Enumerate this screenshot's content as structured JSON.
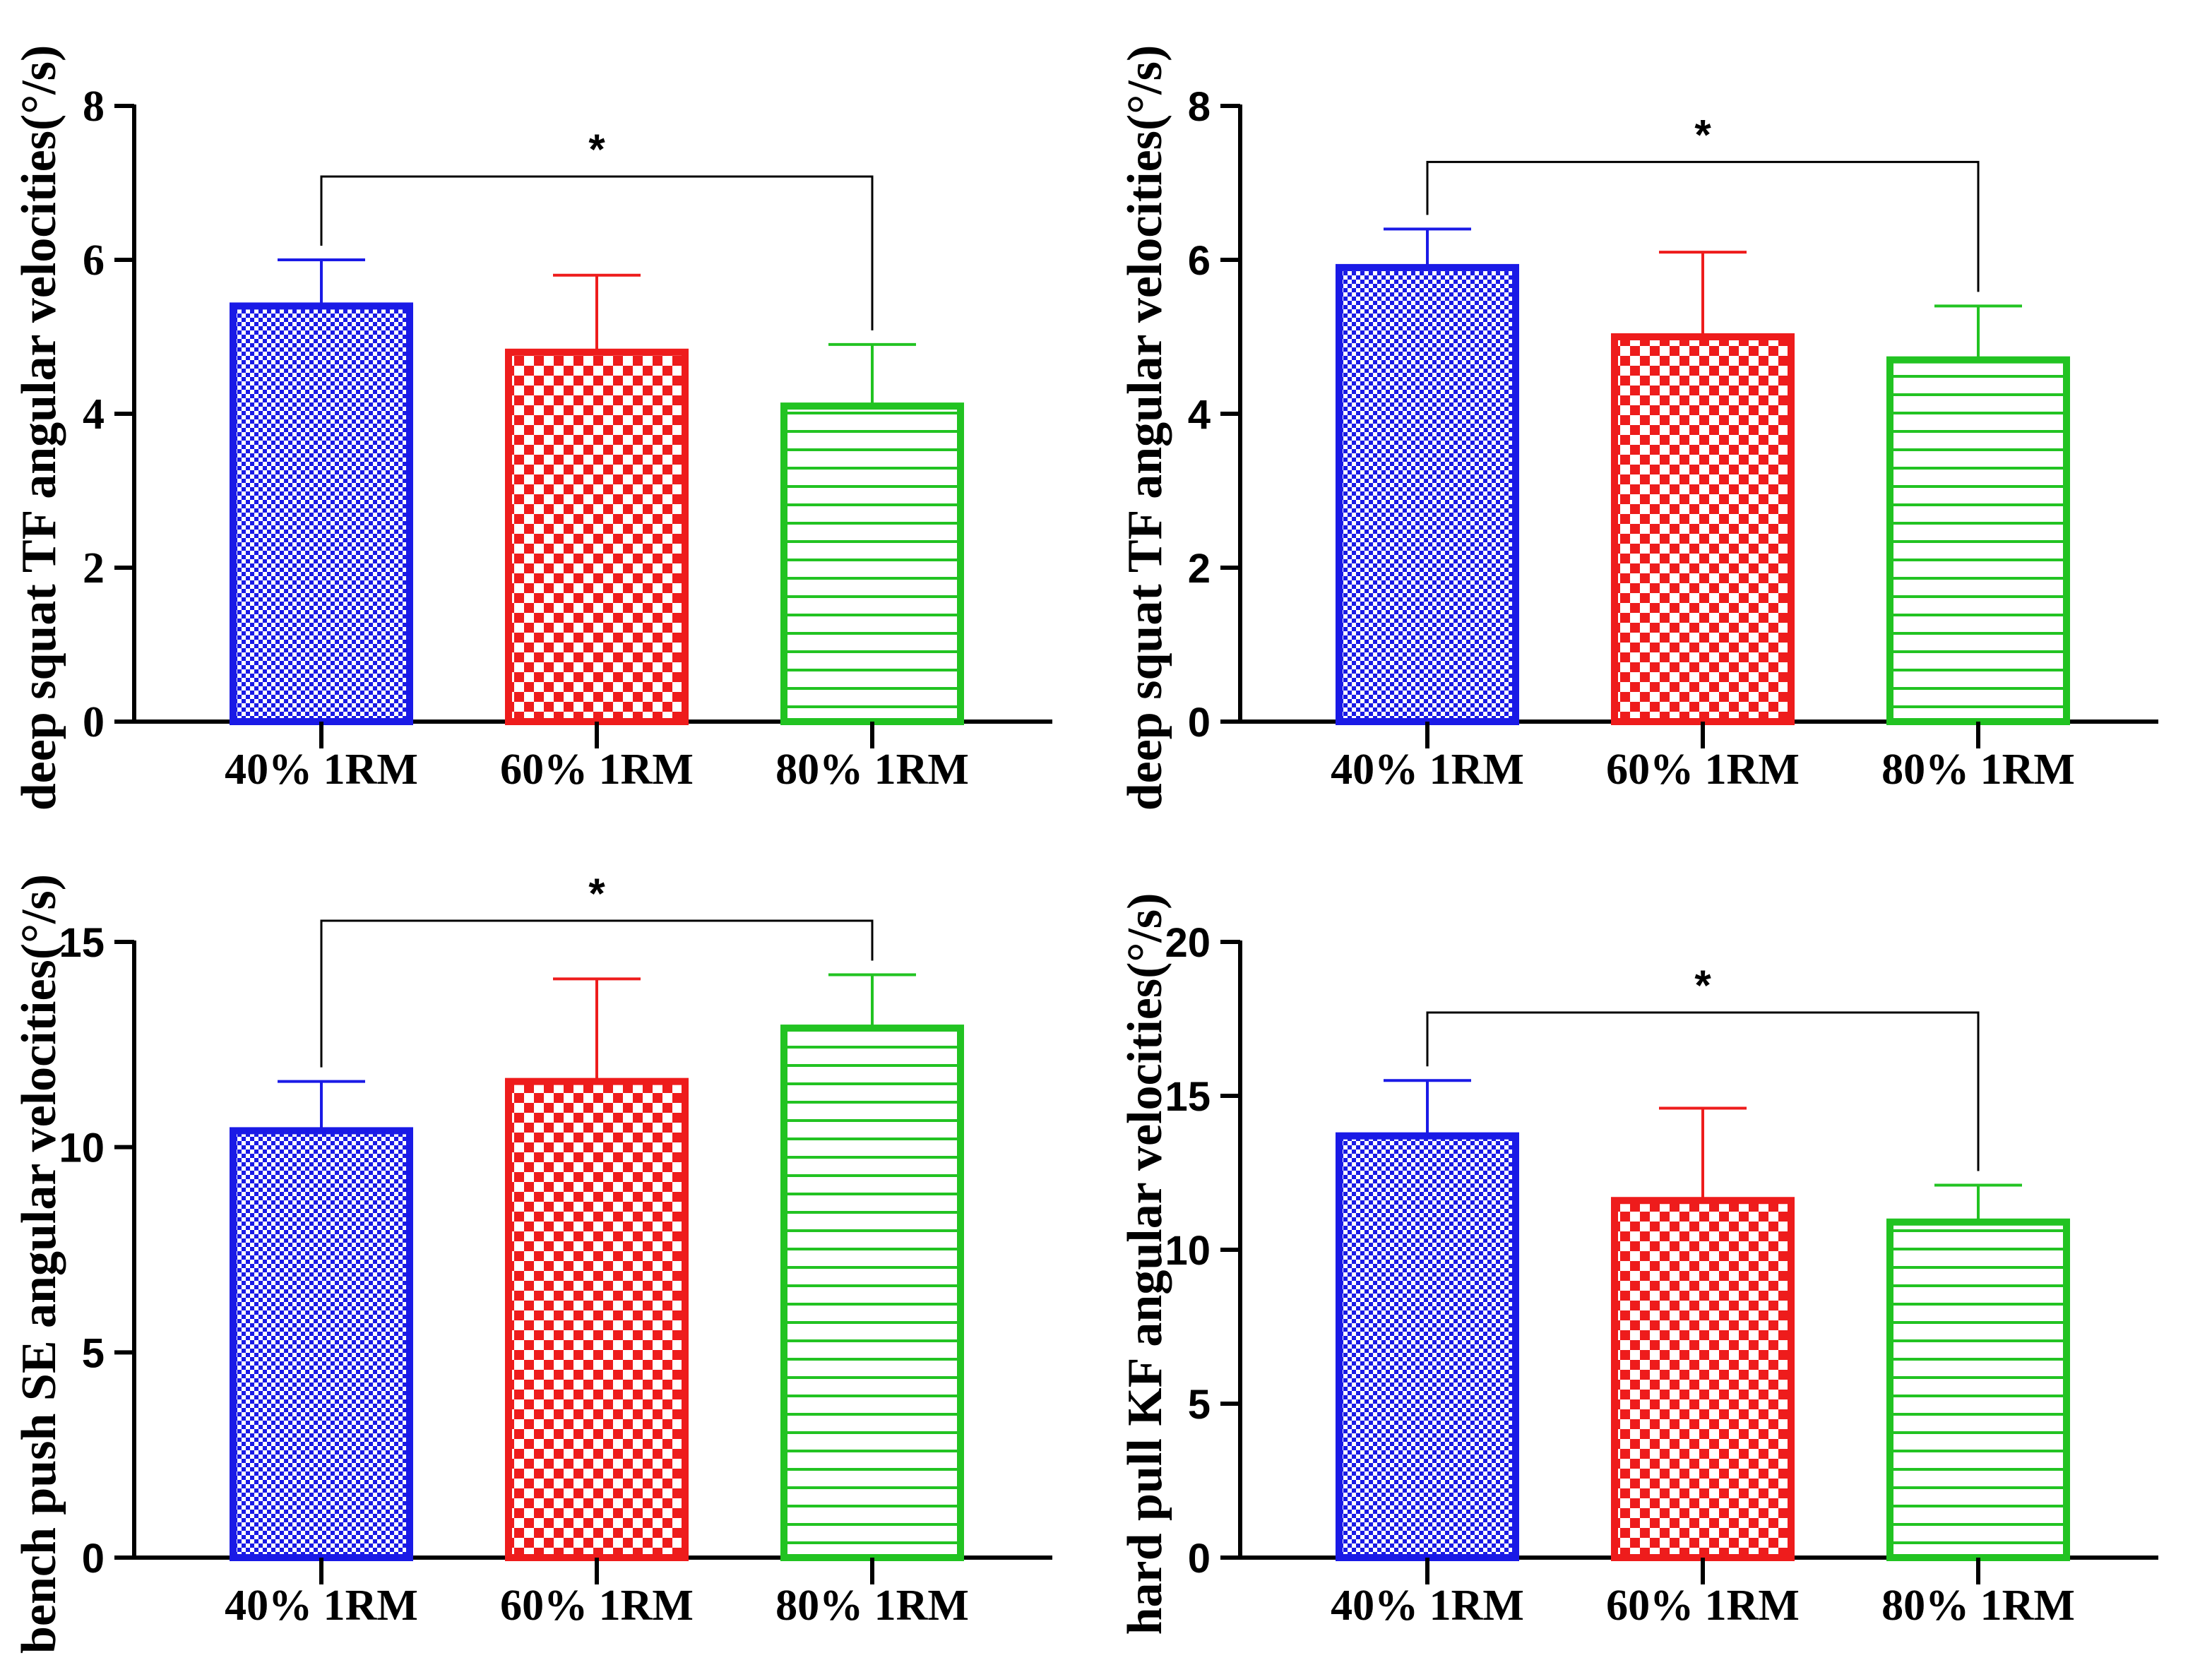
{
  "chart_data": [
    {
      "type": "bar",
      "ylabel": "deep squat TF angular velocities(°/s)",
      "categories": [
        "40% 1RM",
        "60% 1RM",
        "80% 1RM"
      ],
      "values": [
        5.4,
        4.8,
        4.1
      ],
      "errors": [
        0.6,
        1.0,
        0.8
      ],
      "ylim": [
        0,
        8
      ],
      "yticks": [
        "0",
        "2",
        "4",
        "6",
        "8"
      ],
      "significance": {
        "from": 0,
        "to": 2,
        "label": "*"
      },
      "tick_font": "serif"
    },
    {
      "type": "bar",
      "ylabel": "deep squat TF angular velocities(°/s)",
      "categories": [
        "40% 1RM",
        "60% 1RM",
        "80% 1RM"
      ],
      "values": [
        5.9,
        5.0,
        4.7
      ],
      "errors": [
        0.5,
        1.1,
        0.7
      ],
      "ylim": [
        0,
        8
      ],
      "yticks": [
        "0",
        "2",
        "4",
        "6",
        "8"
      ],
      "significance": {
        "from": 0,
        "to": 2,
        "label": "*"
      },
      "tick_font": "sans"
    },
    {
      "type": "bar",
      "ylabel": "bench push SE angular velocities(°/s)",
      "categories": [
        "40% 1RM",
        "60% 1RM",
        "80% 1RM"
      ],
      "values": [
        10.4,
        11.6,
        12.9
      ],
      "errors": [
        1.2,
        2.5,
        1.3
      ],
      "ylim": [
        0,
        15
      ],
      "yticks": [
        "0",
        "5",
        "10",
        "15"
      ],
      "significance": {
        "from": 0,
        "to": 2,
        "label": "*"
      },
      "tick_font": "sans"
    },
    {
      "type": "bar",
      "ylabel": "hard pull KF angular velocities(°/s)",
      "categories": [
        "40% 1RM",
        "60% 1RM",
        "80% 1RM"
      ],
      "values": [
        13.7,
        11.6,
        10.9
      ],
      "errors": [
        1.8,
        3.0,
        1.2
      ],
      "ylim": [
        0,
        20
      ],
      "yticks": [
        "0",
        "5",
        "10",
        "15",
        "20"
      ],
      "significance": {
        "from": 0,
        "to": 2,
        "label": "*"
      },
      "tick_font": "sans"
    }
  ],
  "colors": {
    "blue": "#1a1ae6",
    "red": "#ee1c1c",
    "green": "#22c322",
    "axis": "#000000"
  }
}
